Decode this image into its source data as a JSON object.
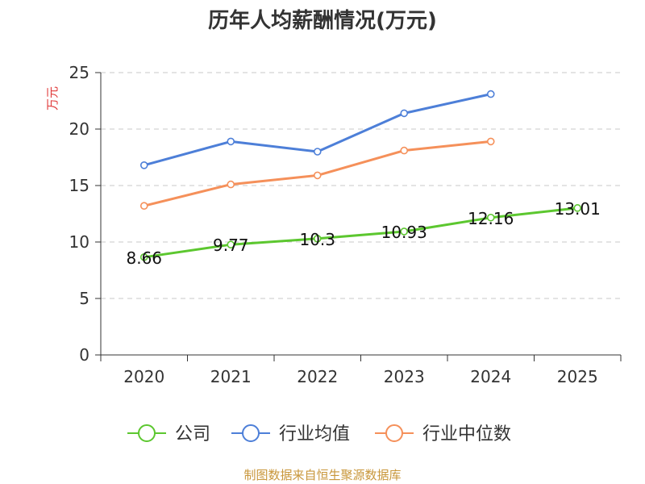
{
  "chart_data": {
    "type": "line",
    "title": "历年人均薪酬情况(万元)",
    "ylabel": "万元",
    "xlabel": "",
    "categories": [
      "2020",
      "2021",
      "2022",
      "2023",
      "2024",
      "2025"
    ],
    "ylim": [
      0,
      25
    ],
    "yticks": [
      0,
      5,
      10,
      15,
      20,
      25
    ],
    "grid": true,
    "legend_position": "bottom",
    "series": [
      {
        "name": "公司",
        "color": "#5cc72f",
        "values": [
          8.66,
          9.77,
          10.3,
          10.93,
          12.16,
          13.01
        ],
        "labels": [
          "8.66",
          "9.77",
          "10.3",
          "10.93",
          "12.16",
          "13.01"
        ]
      },
      {
        "name": "行业均值",
        "color": "#4d7fd8",
        "values": [
          16.8,
          18.9,
          18.0,
          21.4,
          23.1,
          null
        ]
      },
      {
        "name": "行业中位数",
        "color": "#f5905a",
        "values": [
          13.2,
          15.1,
          15.9,
          18.1,
          18.9,
          null
        ]
      }
    ]
  },
  "source": "制图数据来自恒生聚源数据库"
}
